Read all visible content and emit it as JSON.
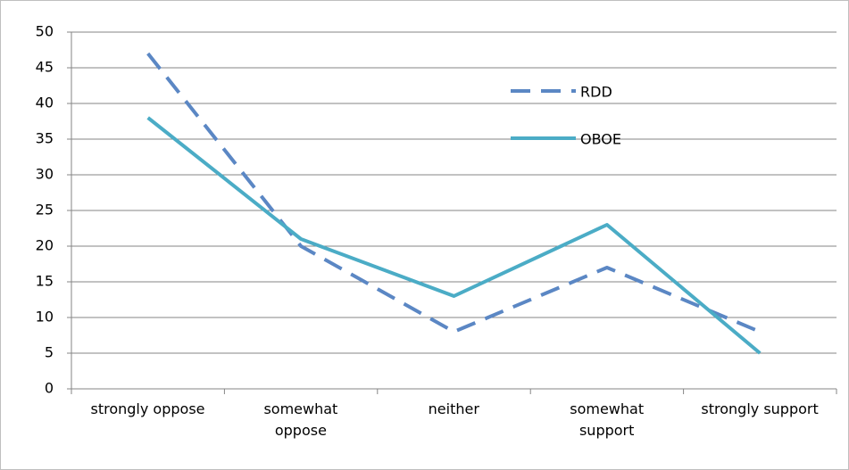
{
  "chart_data": {
    "type": "line",
    "categories": [
      "strongly oppose",
      "somewhat\noppose",
      "neither",
      "somewhat\nsupport",
      "strongly support"
    ],
    "series": [
      {
        "name": "RDD",
        "color": "#5b87c4",
        "dashed": true,
        "values": [
          47,
          20,
          8,
          17,
          8
        ]
      },
      {
        "name": "OBOE",
        "color": "#4bacc6",
        "dashed": false,
        "values": [
          38,
          21,
          13,
          23,
          5
        ]
      }
    ],
    "ylim": [
      0,
      50
    ],
    "yticks": [
      0,
      5,
      10,
      15,
      20,
      25,
      30,
      35,
      40,
      45,
      50
    ],
    "grid": true,
    "legend": "top-right"
  }
}
